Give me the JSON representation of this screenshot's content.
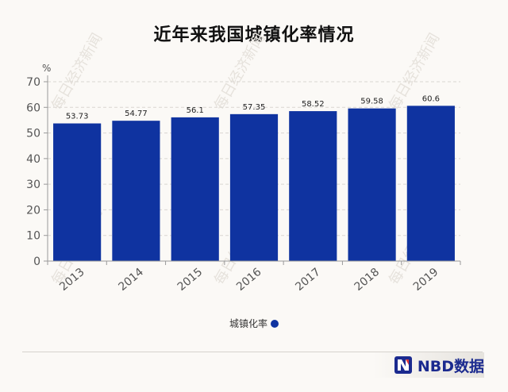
{
  "header": {
    "title": "近年来我国城镇化率情况"
  },
  "brand": {
    "name": "NBD数据",
    "logo_icon": "nbd-logo-icon",
    "watermark": "每日经济新闻"
  },
  "colors": {
    "bar": "#0f33a0",
    "axis": "#999999",
    "grid": "#d9d6d1",
    "text": "#555555"
  },
  "chart_data": {
    "type": "bar",
    "title": "近年来我国城镇化率情况",
    "xlabel": "",
    "ylabel": "%",
    "categories": [
      "2013",
      "2014",
      "2015",
      "2016",
      "2017",
      "2018",
      "2019"
    ],
    "series": [
      {
        "name": "城镇化率",
        "values": [
          53.73,
          54.77,
          56.1,
          57.35,
          58.52,
          59.58,
          60.6
        ]
      }
    ],
    "data_labels": [
      "53.73",
      "54.77",
      "56.1",
      "57.35",
      "58.52",
      "59.58",
      "60.6"
    ],
    "yticks": [
      0,
      10,
      20,
      30,
      40,
      50,
      60,
      70
    ],
    "ylim": [
      0,
      70
    ],
    "grid": true,
    "legend_position": "bottom-center"
  }
}
